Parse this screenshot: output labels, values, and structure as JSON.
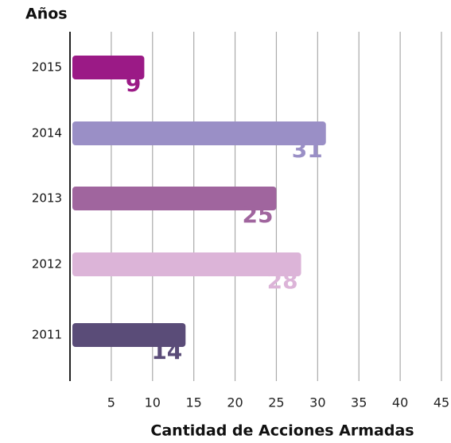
{
  "chart_data": {
    "type": "bar",
    "orientation": "horizontal",
    "y_axis_title": "Años",
    "x_axis_title": "Cantidad de Acciones Armadas",
    "categories": [
      "2015",
      "2014",
      "2013",
      "2012",
      "2011"
    ],
    "values": [
      9,
      31,
      25,
      28,
      14
    ],
    "colors": [
      "#9b1a86",
      "#9a8fc6",
      "#a0659e",
      "#dcb4d8",
      "#5a4c78"
    ],
    "xlim": [
      0,
      45
    ],
    "xticks": [
      5,
      10,
      15,
      20,
      25,
      30,
      35,
      40,
      45
    ],
    "grid": true
  }
}
